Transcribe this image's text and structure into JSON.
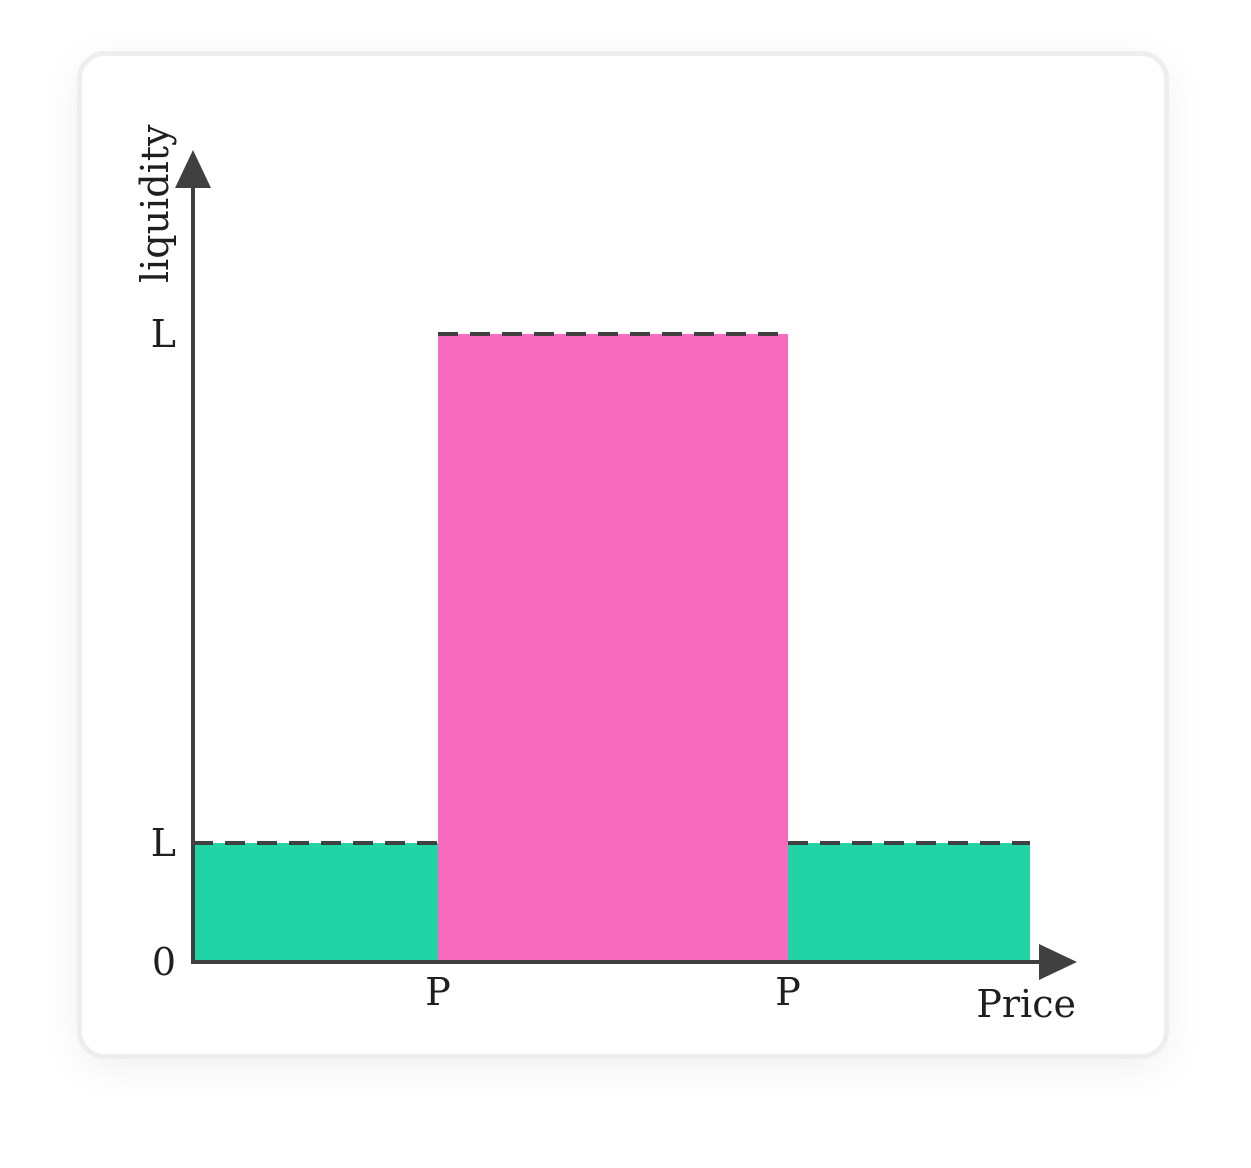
{
  "chart_data": {
    "type": "bar",
    "ylabel": "liquidity",
    "xlabel": "Price",
    "y_ticks": [
      {
        "label": "0",
        "value": 0
      },
      {
        "label": "L",
        "value": 0.2
      },
      {
        "label": "L",
        "value": 1.0
      }
    ],
    "x_ticks": [
      {
        "label": "P",
        "value": 1
      },
      {
        "label": "P",
        "value": 2
      }
    ],
    "xlim": [
      0,
      3.4
    ],
    "ylim": [
      0,
      1.32
    ],
    "bars": [
      {
        "x0": 0,
        "x1": 1,
        "value": 0.2,
        "color": "#22d3a6"
      },
      {
        "x0": 1,
        "x1": 2,
        "value": 1.0,
        "color": "#f76bbf"
      },
      {
        "x0": 2,
        "x1": 3,
        "value": 0.2,
        "color": "#22d3a6"
      }
    ],
    "dashed_levels": [
      {
        "value": 0.2,
        "x0": 0,
        "x1": 1
      },
      {
        "value": 1.0,
        "x0": 1,
        "x1": 2
      },
      {
        "value": 0.2,
        "x0": 2,
        "x1": 3
      }
    ],
    "colors": {
      "axis": "#404040",
      "low_range": "#22d3a6",
      "concentrated_range": "#f76bbf"
    },
    "grid": false,
    "legend": "none"
  }
}
